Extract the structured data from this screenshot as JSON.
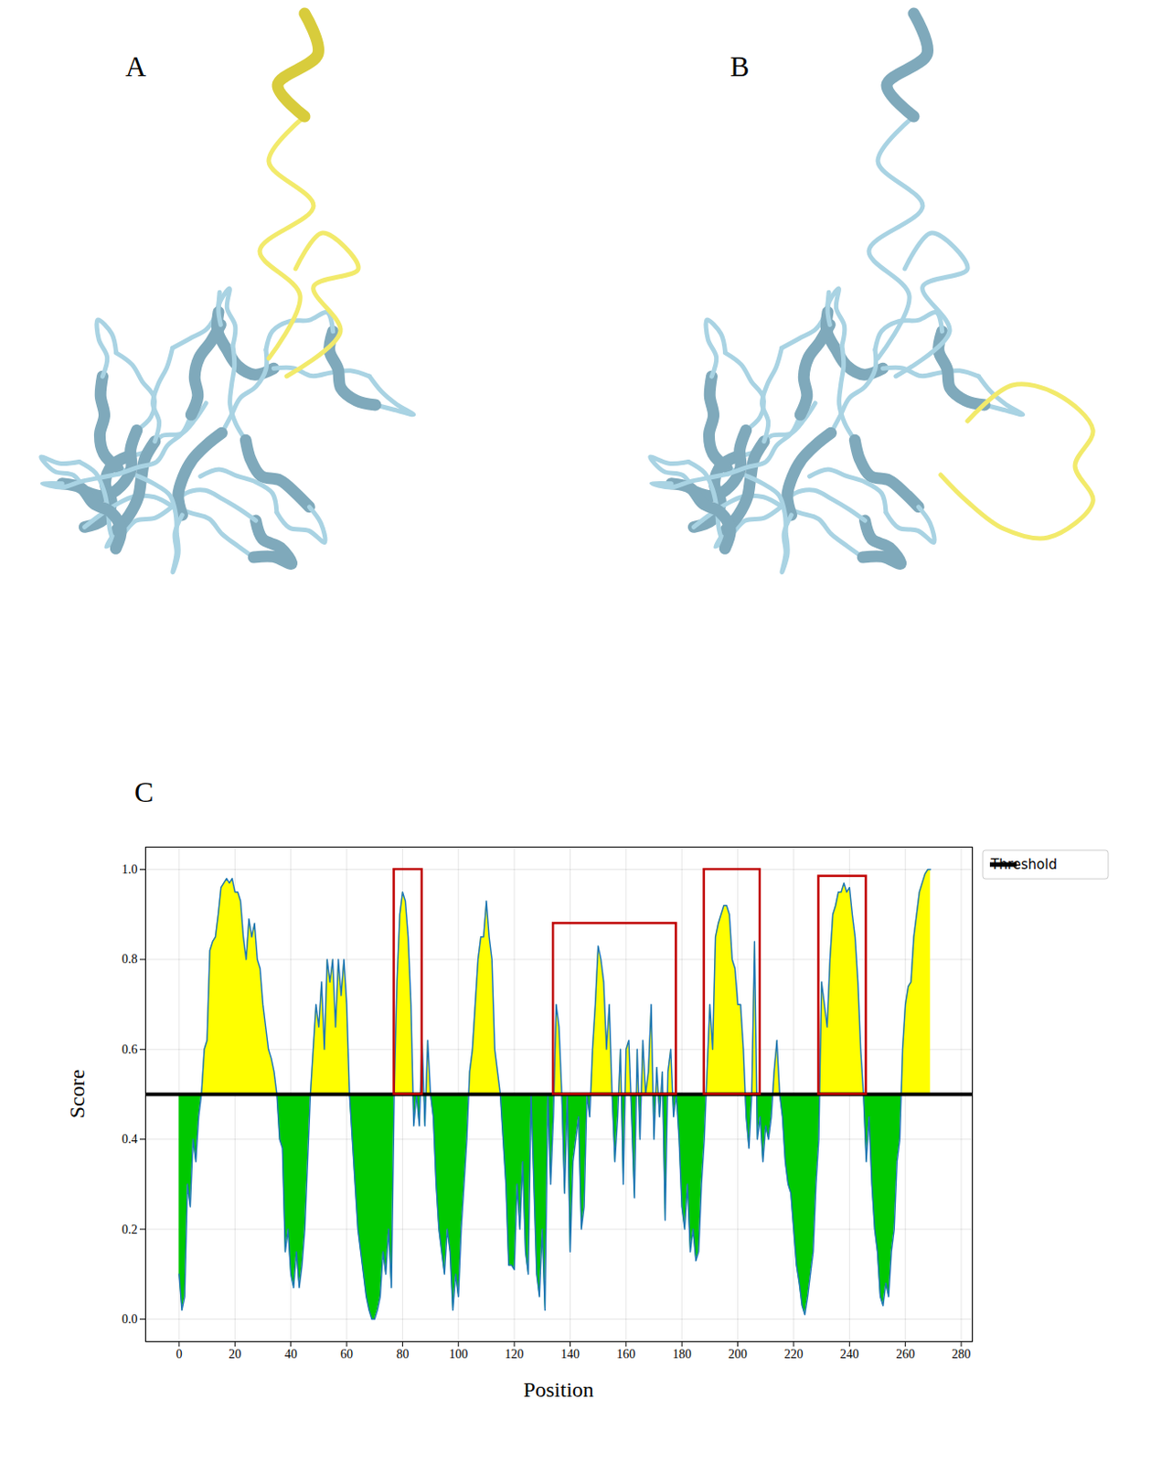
{
  "panel_labels": [
    "A",
    "B",
    "C"
  ],
  "chart_data": {
    "type": "area",
    "x_label": "Position",
    "y_label": "Score",
    "x": [
      0,
      1,
      2,
      3,
      4,
      5,
      6,
      7,
      8,
      9,
      10,
      11,
      12,
      13,
      14,
      15,
      16,
      17,
      18,
      19,
      20,
      21,
      22,
      23,
      24,
      25,
      26,
      27,
      28,
      29,
      30,
      31,
      32,
      33,
      34,
      35,
      36,
      37,
      38,
      39,
      40,
      41,
      42,
      43,
      44,
      45,
      46,
      47,
      48,
      49,
      50,
      51,
      52,
      53,
      54,
      55,
      56,
      57,
      58,
      59,
      60,
      61,
      62,
      63,
      64,
      65,
      66,
      67,
      68,
      69,
      70,
      71,
      72,
      73,
      74,
      75,
      76,
      77,
      78,
      79,
      80,
      81,
      82,
      83,
      84,
      85,
      86,
      87,
      88,
      89,
      90,
      91,
      92,
      93,
      94,
      95,
      96,
      97,
      98,
      99,
      100,
      101,
      102,
      103,
      104,
      105,
      106,
      107,
      108,
      109,
      110,
      111,
      112,
      113,
      114,
      115,
      116,
      117,
      118,
      119,
      120,
      121,
      122,
      123,
      124,
      125,
      126,
      127,
      128,
      129,
      130,
      131,
      132,
      133,
      134,
      135,
      136,
      137,
      138,
      139,
      140,
      141,
      142,
      143,
      144,
      145,
      146,
      147,
      148,
      149,
      150,
      151,
      152,
      153,
      154,
      155,
      156,
      157,
      158,
      159,
      160,
      161,
      162,
      163,
      164,
      165,
      166,
      167,
      168,
      169,
      170,
      171,
      172,
      173,
      174,
      175,
      176,
      177,
      178,
      179,
      180,
      181,
      182,
      183,
      184,
      185,
      186,
      187,
      188,
      189,
      190,
      191,
      192,
      193,
      194,
      195,
      196,
      197,
      198,
      199,
      200,
      201,
      202,
      203,
      204,
      205,
      206,
      207,
      208,
      209,
      210,
      211,
      212,
      213,
      214,
      215,
      216,
      217,
      218,
      219,
      220,
      221,
      222,
      223,
      224,
      225,
      226,
      227,
      228,
      229,
      230,
      231,
      232,
      233,
      234,
      235,
      236,
      237,
      238,
      239,
      240,
      241,
      242,
      243,
      244,
      245,
      246,
      247,
      248,
      249,
      250,
      251,
      252,
      253,
      254,
      255,
      256,
      257,
      258,
      259,
      260,
      261,
      262,
      263,
      264,
      265,
      266,
      267,
      268,
      269
    ],
    "values": [
      0.1,
      0.02,
      0.05,
      0.3,
      0.25,
      0.4,
      0.35,
      0.45,
      0.5,
      0.6,
      0.62,
      0.82,
      0.84,
      0.85,
      0.9,
      0.96,
      0.97,
      0.98,
      0.97,
      0.98,
      0.95,
      0.95,
      0.93,
      0.85,
      0.8,
      0.89,
      0.85,
      0.88,
      0.8,
      0.78,
      0.7,
      0.65,
      0.6,
      0.58,
      0.55,
      0.5,
      0.4,
      0.38,
      0.15,
      0.2,
      0.1,
      0.07,
      0.15,
      0.07,
      0.12,
      0.2,
      0.35,
      0.5,
      0.6,
      0.7,
      0.65,
      0.75,
      0.6,
      0.8,
      0.75,
      0.8,
      0.65,
      0.8,
      0.72,
      0.8,
      0.7,
      0.5,
      0.4,
      0.3,
      0.2,
      0.15,
      0.1,
      0.05,
      0.02,
      0.0,
      0.0,
      0.02,
      0.05,
      0.15,
      0.1,
      0.2,
      0.07,
      0.5,
      0.75,
      0.9,
      0.95,
      0.93,
      0.85,
      0.7,
      0.43,
      0.5,
      0.43,
      0.62,
      0.43,
      0.62,
      0.5,
      0.45,
      0.3,
      0.2,
      0.15,
      0.1,
      0.2,
      0.15,
      0.02,
      0.1,
      0.05,
      0.2,
      0.3,
      0.4,
      0.55,
      0.6,
      0.7,
      0.8,
      0.85,
      0.85,
      0.93,
      0.85,
      0.8,
      0.6,
      0.55,
      0.5,
      0.4,
      0.3,
      0.12,
      0.12,
      0.11,
      0.3,
      0.2,
      0.35,
      0.15,
      0.1,
      0.5,
      0.3,
      0.1,
      0.05,
      0.2,
      0.02,
      0.5,
      0.3,
      0.45,
      0.7,
      0.65,
      0.5,
      0.28,
      0.5,
      0.15,
      0.35,
      0.4,
      0.45,
      0.2,
      0.25,
      0.5,
      0.45,
      0.6,
      0.7,
      0.83,
      0.8,
      0.75,
      0.6,
      0.7,
      0.5,
      0.35,
      0.45,
      0.6,
      0.3,
      0.6,
      0.62,
      0.45,
      0.27,
      0.6,
      0.4,
      0.62,
      0.5,
      0.55,
      0.7,
      0.4,
      0.56,
      0.45,
      0.55,
      0.22,
      0.55,
      0.6,
      0.45,
      0.5,
      0.4,
      0.25,
      0.2,
      0.3,
      0.15,
      0.2,
      0.13,
      0.15,
      0.3,
      0.4,
      0.55,
      0.7,
      0.6,
      0.85,
      0.88,
      0.9,
      0.92,
      0.92,
      0.9,
      0.8,
      0.78,
      0.7,
      0.7,
      0.6,
      0.45,
      0.38,
      0.5,
      0.84,
      0.4,
      0.45,
      0.35,
      0.43,
      0.4,
      0.45,
      0.55,
      0.62,
      0.5,
      0.45,
      0.35,
      0.3,
      0.28,
      0.2,
      0.12,
      0.08,
      0.03,
      0.01,
      0.05,
      0.1,
      0.15,
      0.3,
      0.4,
      0.75,
      0.7,
      0.65,
      0.8,
      0.9,
      0.92,
      0.95,
      0.95,
      0.97,
      0.95,
      0.96,
      0.9,
      0.85,
      0.75,
      0.6,
      0.5,
      0.35,
      0.45,
      0.3,
      0.2,
      0.15,
      0.05,
      0.03,
      0.08,
      0.05,
      0.15,
      0.2,
      0.35,
      0.4,
      0.6,
      0.7,
      0.74,
      0.75,
      0.85,
      0.9,
      0.95,
      0.97,
      0.99,
      1.0,
      1.0
    ],
    "color": "#1f77b4",
    "colors": [
      "#ffff00",
      "#00c800"
    ],
    "threshold": {
      "name": "Threshold",
      "value": 0.5,
      "color": "#000000"
    },
    "boxes": [
      {
        "x1": 77,
        "x2": 87,
        "y1": 0.5,
        "y2": 1.0
      },
      {
        "x1": 134,
        "x2": 178,
        "y1": 0.5,
        "y2": 0.88
      },
      {
        "x1": 188,
        "x2": 208,
        "y1": 0.5,
        "y2": 1.0
      },
      {
        "x1": 229,
        "x2": 246,
        "y1": 0.5,
        "y2": 0.985
      }
    ],
    "xlim": [
      -12,
      284
    ],
    "xticks": [
      0,
      20,
      40,
      60,
      80,
      100,
      120,
      140,
      160,
      180,
      200,
      220,
      240,
      260,
      280
    ],
    "ylim": [
      -0.05,
      1.05
    ],
    "yticks": [
      {
        "value": 0,
        "label": "0.0"
      },
      0.2,
      0.4,
      0.6,
      0.8,
      {
        "value": 1,
        "label": "1.0"
      }
    ],
    "grid": true,
    "legend": "right"
  }
}
